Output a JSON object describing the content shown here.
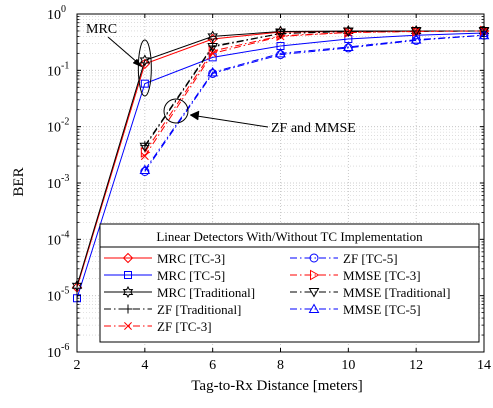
{
  "chart_data": {
    "type": "line",
    "title": "",
    "xlabel": "Tag-to-Rx Distance [meters]",
    "ylabel": "BER",
    "xlim": [
      2,
      14
    ],
    "ylim": [
      1e-06,
      1
    ],
    "yscale": "log",
    "grid": true,
    "x_ticks": [
      2,
      4,
      6,
      8,
      10,
      12,
      14
    ],
    "x_tick_labels": [
      "2",
      "4",
      "6",
      "8",
      "10",
      "12",
      "14"
    ],
    "y_ticks": [
      {
        "value": 1e-06,
        "base": "10",
        "exp": "-6"
      },
      {
        "value": 1e-05,
        "base": "10",
        "exp": "-5"
      },
      {
        "value": 0.0001,
        "base": "10",
        "exp": "-4"
      },
      {
        "value": 0.001,
        "base": "10",
        "exp": "-3"
      },
      {
        "value": 0.01,
        "base": "10",
        "exp": "-2"
      },
      {
        "value": 0.1,
        "base": "10",
        "exp": "-1"
      },
      {
        "value": 1,
        "base": "10",
        "exp": "0"
      }
    ],
    "legend": {
      "title": "Linear Detectors With/Without TC Implementation",
      "position": "bottom-right"
    },
    "series": [
      {
        "name": "MRC [TC-3]",
        "color": "#ff0000",
        "dash": "solid",
        "marker": "diamond",
        "x": [
          2,
          4,
          6,
          8,
          10,
          12,
          14
        ],
        "y": [
          1.4e-05,
          0.13,
          0.36,
          0.48,
          0.49,
          0.5,
          0.5
        ]
      },
      {
        "name": "MRC [TC-5]",
        "color": "#0000ff",
        "dash": "solid",
        "marker": "square",
        "x": [
          2,
          4,
          6,
          8,
          10,
          12,
          14
        ],
        "y": [
          9e-06,
          0.058,
          0.17,
          0.27,
          0.36,
          0.42,
          0.46
        ]
      },
      {
        "name": "MRC [Traditional]",
        "color": "#000000",
        "dash": "solid",
        "marker": "hexagram",
        "x": [
          2,
          4,
          6,
          8,
          10,
          12,
          14
        ],
        "y": [
          1.5e-05,
          0.15,
          0.4,
          0.49,
          0.5,
          0.5,
          0.5
        ]
      },
      {
        "name": "ZF [Traditional]",
        "color": "#000000",
        "dash": "dashdot",
        "marker": "plus",
        "x": [
          4,
          6,
          8,
          10,
          12,
          14
        ],
        "y": [
          0.0046,
          0.27,
          0.45,
          0.49,
          0.5,
          0.5
        ]
      },
      {
        "name": "ZF [TC-3]",
        "color": "#ff0000",
        "dash": "dashdot",
        "marker": "x",
        "x": [
          4,
          6,
          8,
          10,
          12,
          14
        ],
        "y": [
          0.003,
          0.2,
          0.4,
          0.47,
          0.49,
          0.5
        ]
      },
      {
        "name": "ZF [TC-5]",
        "color": "#0000ff",
        "dash": "dashdot",
        "marker": "circle",
        "x": [
          4,
          6,
          8,
          10,
          12,
          14
        ],
        "y": [
          0.0016,
          0.088,
          0.19,
          0.25,
          0.34,
          0.42
        ]
      },
      {
        "name": "MMSE [TC-3]",
        "color": "#ff0000",
        "dash": "dashdot",
        "marker": "triangle-right",
        "x": [
          4,
          6,
          8,
          10,
          12,
          14
        ],
        "y": [
          0.0035,
          0.22,
          0.41,
          0.47,
          0.49,
          0.5
        ]
      },
      {
        "name": "MMSE [Traditional]",
        "color": "#000000",
        "dash": "dashdot",
        "marker": "triangle-down",
        "x": [
          4,
          6,
          8,
          10,
          12,
          14
        ],
        "y": [
          0.0044,
          0.26,
          0.45,
          0.49,
          0.5,
          0.5
        ]
      },
      {
        "name": "MMSE [TC-5]",
        "color": "#0000ff",
        "dash": "dashdot",
        "marker": "triangle-up",
        "x": [
          4,
          6,
          8,
          10,
          12,
          14
        ],
        "y": [
          0.0017,
          0.092,
          0.2,
          0.26,
          0.35,
          0.42
        ]
      }
    ],
    "annotations": [
      {
        "text": "MRC"
      },
      {
        "text": "ZF and MMSE"
      }
    ]
  }
}
